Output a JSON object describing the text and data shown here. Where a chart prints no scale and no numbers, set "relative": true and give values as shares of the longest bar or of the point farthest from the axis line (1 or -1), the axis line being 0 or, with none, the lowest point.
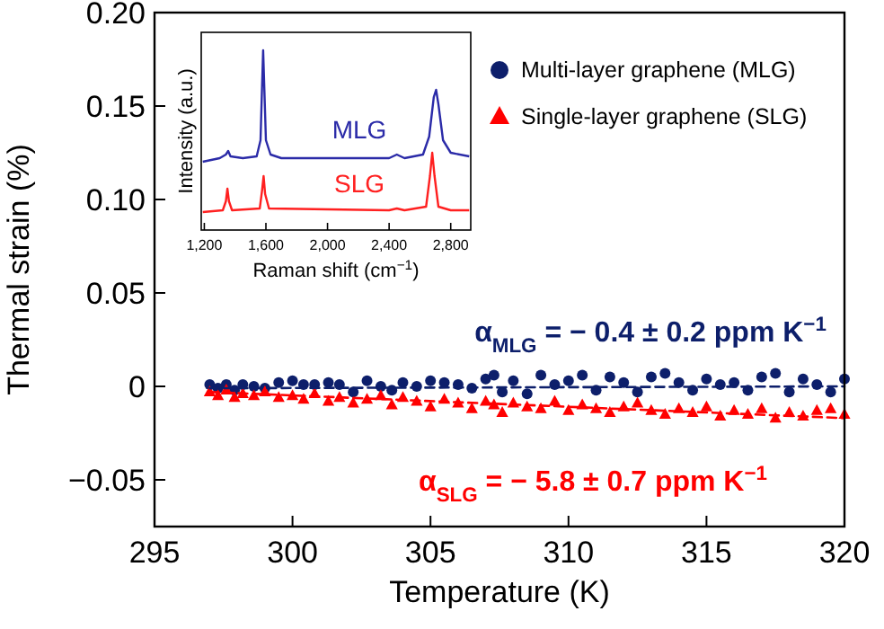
{
  "chart_data": [
    {
      "type": "scatter",
      "xlabel": "Temperature (K)",
      "ylabel": "Thermal strain (%)",
      "xlim": [
        295,
        320
      ],
      "ylim": [
        -0.075,
        0.2
      ],
      "xticks": [
        295,
        300,
        305,
        310,
        315,
        320
      ],
      "yticks": [
        {
          "value": -0.05,
          "label": "−0.05"
        },
        0,
        {
          "value": 0.05,
          "label": "0.05"
        },
        {
          "value": 0.1,
          "label": "0.10"
        },
        {
          "value": 0.15,
          "label": "0.15"
        },
        {
          "value": 0.2,
          "label": "0.20"
        }
      ],
      "legend": "top right",
      "x": [
        297,
        297.3,
        297.6,
        297.9,
        298.2,
        298.6,
        299,
        299.5,
        300,
        300.4,
        300.8,
        301.3,
        301.7,
        302.2,
        302.7,
        303.2,
        303.6,
        304,
        304.5,
        305,
        305.5,
        306,
        306.5,
        307,
        307.3,
        307.6,
        308,
        308.5,
        309,
        309.5,
        310,
        310.5,
        311,
        311.5,
        312,
        312.5,
        313,
        313.5,
        314,
        314.5,
        315,
        315.5,
        316,
        316.5,
        317,
        317.5,
        318,
        318.5,
        319,
        319.5,
        320
      ],
      "series": [
        {
          "name": "Multi-layer graphene (MLG)",
          "color": "#0d1f6b",
          "marker": "circle",
          "values": [
            0.001,
            -0.001,
            0.001,
            -0.002,
            0.001,
            0,
            -0.001,
            0.002,
            0.003,
            0.001,
            0.001,
            0.002,
            0.001,
            -0.003,
            0.003,
            0,
            -0.002,
            0.002,
            0,
            0.003,
            0.002,
            0.001,
            -0.001,
            0.004,
            0.006,
            -0.003,
            0.003,
            -0.004,
            0.006,
            0.001,
            0.003,
            0.006,
            -0.002,
            0.005,
            0.002,
            -0.003,
            0.005,
            0.007,
            0.002,
            -0.002,
            0.004,
            0.001,
            0.002,
            -0.002,
            0.005,
            0.007,
            -0.003,
            0.004,
            0.001,
            -0.003,
            0.004
          ]
        },
        {
          "name": "Single-layer graphene (SLG)",
          "color": "#ff0000",
          "marker": "triangle",
          "values": [
            -0.003,
            -0.005,
            -0.002,
            -0.006,
            -0.004,
            -0.005,
            -0.003,
            -0.006,
            -0.005,
            -0.007,
            -0.004,
            -0.008,
            -0.006,
            -0.009,
            -0.007,
            -0.005,
            -0.01,
            -0.006,
            -0.008,
            -0.011,
            -0.007,
            -0.009,
            -0.012,
            -0.008,
            -0.01,
            -0.014,
            -0.009,
            -0.011,
            -0.012,
            -0.008,
            -0.013,
            -0.01,
            -0.012,
            -0.014,
            -0.011,
            -0.009,
            -0.013,
            -0.015,
            -0.012,
            -0.014,
            -0.011,
            -0.016,
            -0.013,
            -0.015,
            -0.012,
            -0.017,
            -0.014,
            -0.016,
            -0.013,
            -0.012,
            -0.015
          ]
        },
        {
          "type": "line",
          "color": "#0d1f6b",
          "line_style": "dashed",
          "marker": "none",
          "x": [
            297,
            320
          ],
          "values": [
            -0.001,
            0
          ]
        },
        {
          "type": "line",
          "color": "#ff0000",
          "line_style": "dashed",
          "marker": "none",
          "x": [
            297,
            320
          ],
          "values": [
            -0.003,
            -0.017
          ]
        }
      ],
      "annotations": [
        "α$_{MLG}$ = − 0.4 ± 0.2 ppm K$^{−1}$",
        "α$_{SLG}$ = − 5.8 ± 0.7 ppm K$^{−1}$"
      ]
    },
    {
      "type": "line",
      "relative": true,
      "xlabel": "Raman shift (cm$^{−1}$)",
      "ylabel": "Intensity (a.u.)",
      "xlim": [
        1180,
        2930
      ],
      "xticks": [
        {
          "value": 1200,
          "label": "1,200"
        },
        {
          "value": 1600,
          "label": "1,600"
        },
        {
          "value": 2000,
          "label": "2,000"
        },
        {
          "value": 2400,
          "label": "2,400"
        },
        {
          "value": 2800,
          "label": "2,800"
        }
      ],
      "tick_labels": "x",
      "series": [
        {
          "name": "MLG",
          "color": "#2b2ba8",
          "x": [
            1190,
            1300,
            1340,
            1355,
            1370,
            1450,
            1540,
            1565,
            1575,
            1582,
            1590,
            1600,
            1630,
            1700,
            2000,
            2400,
            2450,
            2500,
            2620,
            2660,
            2690,
            2705,
            2720,
            2750,
            2800,
            2920
          ],
          "values": [
            0.38,
            0.4,
            0.42,
            0.44,
            0.41,
            0.4,
            0.41,
            0.5,
            0.8,
            1,
            0.78,
            0.5,
            0.42,
            0.4,
            0.4,
            0.4,
            0.42,
            0.4,
            0.42,
            0.52,
            0.74,
            0.78,
            0.7,
            0.5,
            0.43,
            0.41
          ]
        },
        {
          "name": "SLG",
          "color": "#ff2020",
          "x": [
            1190,
            1320,
            1340,
            1350,
            1360,
            1380,
            1560,
            1575,
            1585,
            1595,
            1620,
            2400,
            2450,
            2500,
            2640,
            2665,
            2680,
            2695,
            2720,
            2800,
            2920
          ],
          "values": [
            0.1,
            0.11,
            0.16,
            0.23,
            0.16,
            0.11,
            0.12,
            0.22,
            0.3,
            0.2,
            0.12,
            0.11,
            0.12,
            0.11,
            0.13,
            0.3,
            0.43,
            0.3,
            0.13,
            0.11,
            0.11
          ]
        }
      ]
    }
  ]
}
